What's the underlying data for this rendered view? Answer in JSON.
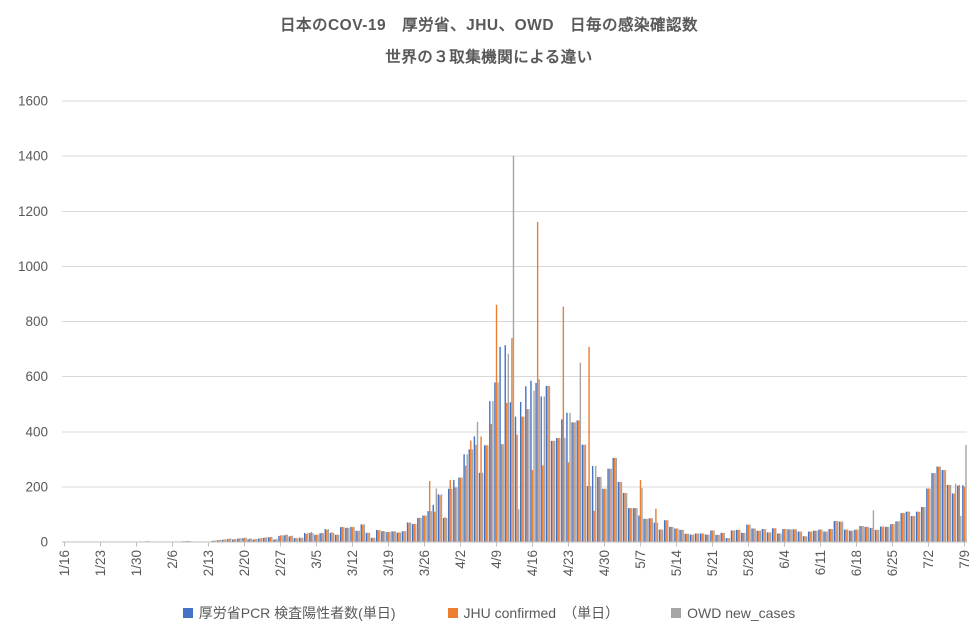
{
  "title": {
    "line1": "日本のCOV-19　厚労省、JHU、OWD　日毎の感染確認数",
    "line2": "世界の３取集機関による違い"
  },
  "legend": [
    {
      "label": "厚労省PCR 検査陽性者数(単日)",
      "color": "#4472C4"
    },
    {
      "label": "JHU confirmed　（単日）",
      "color": "#ED7D31"
    },
    {
      "label": "OWD new_cases",
      "color": "#A5A5A5"
    }
  ],
  "colors": {
    "grid": "#D9D9D9",
    "axis": "#BFBFBF",
    "text": "#595959"
  },
  "y_axis": {
    "min": 0,
    "max": 1600,
    "step": 200,
    "labels": [
      "0",
      "200",
      "400",
      "600",
      "800",
      "1000",
      "1200",
      "1400",
      "1600"
    ]
  },
  "x_axis": {
    "tick_every_days": 7,
    "first_tick": "1/16",
    "last_tick": "7/9"
  },
  "chart_data": {
    "type": "bar",
    "title": "日本のCOV-19　厚労省、JHU、OWD　日毎の感染確認数 — 世界の３取集機関による違い",
    "ylim": [
      0,
      1600
    ],
    "grid": true,
    "legend_position": "bottom",
    "x": [
      "1/16",
      "1/17",
      "1/18",
      "1/19",
      "1/20",
      "1/21",
      "1/22",
      "1/23",
      "1/24",
      "1/25",
      "1/26",
      "1/27",
      "1/28",
      "1/29",
      "1/30",
      "1/31",
      "2/1",
      "2/2",
      "2/3",
      "2/4",
      "2/5",
      "2/6",
      "2/7",
      "2/8",
      "2/9",
      "2/10",
      "2/11",
      "2/12",
      "2/13",
      "2/14",
      "2/15",
      "2/16",
      "2/17",
      "2/18",
      "2/19",
      "2/20",
      "2/21",
      "2/22",
      "2/23",
      "2/24",
      "2/25",
      "2/26",
      "2/27",
      "2/28",
      "2/29",
      "3/1",
      "3/2",
      "3/3",
      "3/4",
      "3/5",
      "3/6",
      "3/7",
      "3/8",
      "3/9",
      "3/10",
      "3/11",
      "3/12",
      "3/13",
      "3/14",
      "3/15",
      "3/16",
      "3/17",
      "3/18",
      "3/19",
      "3/20",
      "3/21",
      "3/22",
      "3/23",
      "3/24",
      "3/25",
      "3/26",
      "3/27",
      "3/28",
      "3/29",
      "3/30",
      "3/31",
      "4/1",
      "4/2",
      "4/3",
      "4/4",
      "4/5",
      "4/6",
      "4/7",
      "4/8",
      "4/9",
      "4/10",
      "4/11",
      "4/12",
      "4/13",
      "4/14",
      "4/15",
      "4/16",
      "4/17",
      "4/18",
      "4/19",
      "4/20",
      "4/21",
      "4/22",
      "4/23",
      "4/24",
      "4/25",
      "4/26",
      "4/27",
      "4/28",
      "4/29",
      "4/30",
      "5/1",
      "5/2",
      "5/3",
      "5/4",
      "5/5",
      "5/6",
      "5/7",
      "5/8",
      "5/9",
      "5/10",
      "5/11",
      "5/12",
      "5/13",
      "5/14",
      "5/15",
      "5/16",
      "5/17",
      "5/18",
      "5/19",
      "5/20",
      "5/21",
      "5/22",
      "5/23",
      "5/24",
      "5/25",
      "5/26",
      "5/27",
      "5/28",
      "5/29",
      "5/30",
      "5/31",
      "6/1",
      "6/2",
      "6/3",
      "6/4",
      "6/5",
      "6/6",
      "6/7",
      "6/8",
      "6/9",
      "6/10",
      "6/11",
      "6/12",
      "6/13",
      "6/14",
      "6/15",
      "6/16",
      "6/17",
      "6/18",
      "6/19",
      "6/20",
      "6/21",
      "6/22",
      "6/23",
      "6/24",
      "6/25",
      "6/26",
      "6/27",
      "6/28",
      "6/29",
      "6/30",
      "7/1",
      "7/2",
      "7/3",
      "7/4",
      "7/5",
      "7/6",
      "7/7",
      "7/8",
      "7/9"
    ],
    "series": [
      {
        "name": "厚労省PCR 検査陽性者数(単日)",
        "color": "#4472C4",
        "values": [
          1,
          0,
          0,
          0,
          0,
          0,
          0,
          1,
          1,
          0,
          1,
          0,
          1,
          1,
          1,
          2,
          2,
          1,
          0,
          1,
          1,
          0,
          0,
          2,
          3,
          2,
          1,
          2,
          1,
          4,
          6,
          8,
          10,
          9,
          12,
          14,
          10,
          9,
          12,
          15,
          17,
          9,
          22,
          24,
          20,
          14,
          16,
          33,
          32,
          26,
          32,
          47,
          33,
          26,
          54,
          51,
          55,
          41,
          64,
          33,
          15,
          44,
          39,
          36,
          39,
          34,
          39,
          71,
          65,
          87,
          96,
          112,
          135,
          173,
          87,
          193,
          225,
          234,
          318,
          336,
          383,
          251,
          351,
          511,
          579,
          708,
          714,
          507,
          455,
          508,
          565,
          585,
          577,
          528,
          566,
          367,
          377,
          445,
          469,
          434,
          441,
          353,
          203,
          276,
          236,
          193,
          266,
          305,
          218,
          178,
          123,
          123,
          96,
          84,
          86,
          70,
          45,
          79,
          55,
          49,
          44,
          30,
          27,
          31,
          31,
          27,
          42,
          26,
          33,
          14,
          42,
          44,
          33,
          63,
          49,
          41,
          47,
          35,
          50,
          31,
          47,
          46,
          46,
          38,
          21,
          38,
          41,
          45,
          38,
          47,
          76,
          74,
          45,
          41,
          45,
          58,
          55,
          51,
          44,
          56,
          55,
          65,
          75,
          105,
          110,
          94,
          110,
          127,
          194,
          250,
          274,
          261,
          207,
          176,
          204,
          206
        ]
      },
      {
        "name": "JHU confirmed　（単日）",
        "color": "#ED7D31",
        "values": [
          2,
          0,
          0,
          0,
          0,
          0,
          1,
          1,
          1,
          0,
          2,
          0,
          1,
          2,
          1,
          2,
          3,
          0,
          0,
          1,
          0,
          0,
          0,
          3,
          4,
          2,
          1,
          2,
          1,
          5,
          7,
          9,
          12,
          10,
          13,
          15,
          12,
          10,
          14,
          16,
          18,
          10,
          24,
          26,
          22,
          15,
          14,
          29,
          36,
          27,
          33,
          44,
          35,
          27,
          55,
          52,
          54,
          40,
          63,
          34,
          16,
          43,
          40,
          37,
          38,
          35,
          40,
          70,
          66,
          88,
          96,
          221,
          110,
          170,
          90,
          225,
          198,
          233,
          277,
          368,
          353,
          383,
          351,
          428,
          861,
          355,
          505,
          740,
          390,
          455,
          482,
          261,
          1161,
          278,
          566,
          367,
          377,
          854,
          289,
          434,
          441,
          353,
          708,
          113,
          236,
          193,
          266,
          305,
          218,
          178,
          123,
          123,
          225,
          84,
          86,
          121,
          45,
          79,
          55,
          49,
          44,
          30,
          27,
          31,
          31,
          27,
          42,
          26,
          33,
          14,
          42,
          44,
          33,
          63,
          49,
          41,
          47,
          35,
          50,
          31,
          47,
          46,
          46,
          38,
          21,
          38,
          41,
          45,
          38,
          47,
          76,
          74,
          45,
          41,
          45,
          58,
          55,
          51,
          44,
          56,
          55,
          65,
          75,
          105,
          110,
          94,
          110,
          127,
          194,
          250,
          273,
          261,
          207,
          176,
          207,
          201
        ]
      },
      {
        "name": "OWD new_cases",
        "color": "#A5A5A5",
        "values": [
          1,
          0,
          0,
          0,
          0,
          0,
          1,
          1,
          1,
          0,
          2,
          0,
          1,
          2,
          1,
          2,
          3,
          0,
          0,
          1,
          0,
          0,
          0,
          3,
          4,
          2,
          1,
          2,
          1,
          5,
          8,
          10,
          13,
          11,
          14,
          16,
          13,
          11,
          15,
          17,
          19,
          11,
          25,
          27,
          23,
          14,
          16,
          33,
          32,
          26,
          32,
          47,
          33,
          26,
          54,
          51,
          55,
          41,
          64,
          33,
          15,
          44,
          39,
          36,
          39,
          34,
          39,
          71,
          65,
          87,
          96,
          112,
          194,
          173,
          87,
          193,
          198,
          234,
          318,
          336,
          436,
          251,
          351,
          511,
          579,
          355,
          683,
          1401,
          119,
          455,
          482,
          549,
          590,
          528,
          566,
          367,
          377,
          378,
          469,
          434,
          651,
          353,
          203,
          276,
          236,
          193,
          266,
          305,
          218,
          178,
          123,
          123,
          196,
          84,
          86,
          70,
          45,
          79,
          55,
          49,
          44,
          30,
          27,
          31,
          31,
          27,
          42,
          26,
          33,
          14,
          42,
          44,
          33,
          63,
          49,
          41,
          47,
          35,
          50,
          31,
          47,
          46,
          46,
          38,
          21,
          38,
          41,
          45,
          38,
          47,
          76,
          74,
          45,
          41,
          45,
          58,
          55,
          115,
          44,
          56,
          55,
          65,
          75,
          105,
          110,
          94,
          110,
          127,
          194,
          250,
          274,
          261,
          207,
          211,
          95,
          352
        ]
      }
    ]
  }
}
